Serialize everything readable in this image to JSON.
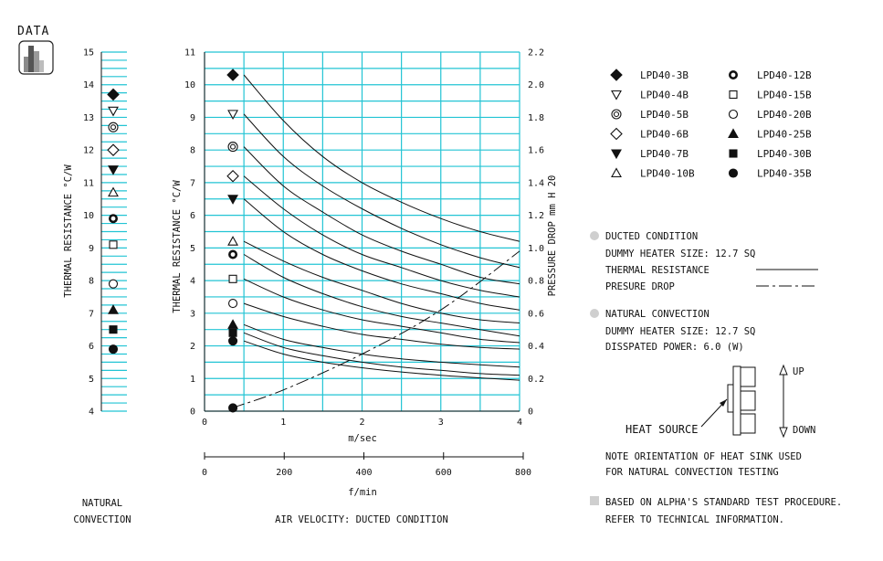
{
  "data_tag": "DATA",
  "chart_data": [
    {
      "type": "scatter",
      "name": "natural-convection",
      "ylabel": "THERMAL RESISTANCE  °C/W",
      "xlabel_lines": [
        "NATURAL",
        "CONVECTION"
      ],
      "ylim": [
        4,
        15
      ],
      "yticks": [
        4,
        5,
        6,
        7,
        8,
        9,
        10,
        11,
        12,
        13,
        14,
        15
      ],
      "grid": true,
      "points": [
        {
          "model": "LPD40-3B",
          "y": 13.7
        },
        {
          "model": "LPD40-4B",
          "y": 13.2
        },
        {
          "model": "LPD40-5B",
          "y": 12.7
        },
        {
          "model": "LPD40-6B",
          "y": 12.0
        },
        {
          "model": "LPD40-7B",
          "y": 11.4
        },
        {
          "model": "LPD40-10B",
          "y": 10.7
        },
        {
          "model": "LPD40-12B",
          "y": 9.9
        },
        {
          "model": "LPD40-15B",
          "y": 9.1
        },
        {
          "model": "LPD40-20B",
          "y": 7.9
        },
        {
          "model": "LPD40-25B",
          "y": 7.1
        },
        {
          "model": "LPD40-30B",
          "y": 6.5
        },
        {
          "model": "LPD40-35B",
          "y": 5.9
        }
      ]
    },
    {
      "type": "line",
      "name": "ducted-condition",
      "ylabel": "THERMAL  RESISTANCE  °C/W",
      "y2label": "PRESSURE  DROP   mm H 20",
      "xlabel": "m/sec",
      "x2label": "f/min",
      "bottom_caption": "AIR VELOCITY:  DUCTED CONDITION",
      "xlim": [
        0,
        4
      ],
      "ylim": [
        0,
        11
      ],
      "y2lim": [
        0,
        2.2
      ],
      "xticks": [
        0,
        1,
        2,
        3,
        4
      ],
      "yticks": [
        0,
        1,
        2,
        3,
        4,
        5,
        6,
        7,
        8,
        9,
        10,
        11
      ],
      "y2ticks": [
        "0",
        "0.2",
        "0.4",
        "0.6",
        "0.8",
        "1.0",
        "1.2",
        "1.4",
        "1.6",
        "1.8",
        "2.0",
        "2.2"
      ],
      "x2ticks": [
        0,
        200,
        400,
        600,
        800
      ],
      "grid": true,
      "x": [
        0.5,
        1.0,
        1.5,
        2.0,
        2.5,
        3.0,
        3.5,
        4.0
      ],
      "series": [
        {
          "model": "LPD40-3B",
          "marker_y": 10.3,
          "values": [
            10.3,
            8.9,
            7.8,
            7.0,
            6.4,
            5.9,
            5.5,
            5.2
          ]
        },
        {
          "model": "LPD40-4B",
          "marker_y": 9.1,
          "values": [
            9.1,
            7.8,
            6.9,
            6.2,
            5.6,
            5.1,
            4.7,
            4.4
          ]
        },
        {
          "model": "LPD40-5B",
          "marker_y": 8.1,
          "values": [
            8.1,
            6.9,
            6.1,
            5.4,
            4.9,
            4.5,
            4.1,
            3.9
          ]
        },
        {
          "model": "LPD40-6B",
          "marker_y": 7.2,
          "values": [
            7.2,
            6.2,
            5.4,
            4.8,
            4.4,
            4.0,
            3.7,
            3.5
          ]
        },
        {
          "model": "LPD40-7B",
          "marker_y": 6.5,
          "values": [
            6.5,
            5.5,
            4.8,
            4.3,
            3.9,
            3.6,
            3.3,
            3.1
          ]
        },
        {
          "model": "LPD40-10B",
          "marker_y": 5.2,
          "values": [
            5.2,
            4.6,
            4.1,
            3.7,
            3.3,
            3.0,
            2.8,
            2.7
          ]
        },
        {
          "model": "LPD40-12B",
          "marker_y": 4.8,
          "values": [
            4.8,
            4.1,
            3.6,
            3.2,
            2.9,
            2.7,
            2.5,
            2.3
          ]
        },
        {
          "model": "LPD40-15B",
          "marker_y": 4.05,
          "values": [
            4.05,
            3.5,
            3.1,
            2.8,
            2.6,
            2.4,
            2.2,
            2.1
          ]
        },
        {
          "model": "LPD40-20B",
          "marker_y": 3.3,
          "values": [
            3.3,
            2.9,
            2.6,
            2.35,
            2.2,
            2.05,
            1.95,
            1.9
          ]
        },
        {
          "model": "LPD40-25B",
          "marker_y": 2.65,
          "values": [
            2.65,
            2.2,
            1.95,
            1.75,
            1.6,
            1.5,
            1.42,
            1.35
          ]
        },
        {
          "model": "LPD40-30B",
          "marker_y": 2.4,
          "values": [
            2.4,
            1.95,
            1.7,
            1.5,
            1.35,
            1.25,
            1.15,
            1.1
          ]
        },
        {
          "model": "LPD40-35B",
          "marker_y": 2.15,
          "values": [
            2.15,
            1.75,
            1.5,
            1.33,
            1.2,
            1.1,
            1.02,
            0.95
          ]
        }
      ],
      "pressure_drop": {
        "x": [
          0.35,
          1.0,
          2.0,
          3.0,
          4.0
        ],
        "values": [
          0.02,
          0.13,
          0.35,
          0.62,
          0.98
        ]
      },
      "pressure_marker_y": 0.2
    }
  ],
  "legend": [
    {
      "model": "LPD40-3B",
      "marker": "diamond-filled"
    },
    {
      "model": "LPD40-4B",
      "marker": "triangle-down-open"
    },
    {
      "model": "LPD40-5B",
      "marker": "double-circle"
    },
    {
      "model": "LPD40-6B",
      "marker": "diamond-open"
    },
    {
      "model": "LPD40-7B",
      "marker": "triangle-down-filled"
    },
    {
      "model": "LPD40-10B",
      "marker": "triangle-up-open"
    },
    {
      "model": "LPD40-12B",
      "marker": "thick-circle"
    },
    {
      "model": "LPD40-15B",
      "marker": "square-open"
    },
    {
      "model": "LPD40-20B",
      "marker": "circle-open"
    },
    {
      "model": "LPD40-25B",
      "marker": "triangle-up-filled"
    },
    {
      "model": "LPD40-30B",
      "marker": "square-filled"
    },
    {
      "model": "LPD40-35B",
      "marker": "circle-filled"
    }
  ],
  "notes": {
    "ducted_title": "DUCTED CONDITION",
    "ducted_heater": "DUMMY HEATER SIZE: 12.7 SQ",
    "thermal_resistance": "THERMAL RESISTANCE",
    "pressure_drop": "PRESURE DROP",
    "natural_title": "NATURAL CONVECTION",
    "natural_heater": "DUMMY HEATER SIZE: 12.7 SQ",
    "dissipated": "DISSPATED POWER: 6.0 (W)",
    "up": "UP",
    "down": "DOWN",
    "heat_source": "HEAT SOURCE",
    "orientation_1": "NOTE ORIENTATION OF HEAT SINK USED",
    "orientation_2": "FOR NATURAL CONVECTION TESTING",
    "procedure_1": "BASED ON ALPHA'S STANDARD TEST PROCEDURE.",
    "procedure_2": "REFER TO TECHNICAL INFORMATION."
  },
  "colors": {
    "grid": "#22c4d4",
    "ink": "#111111",
    "note_bullet": "#cfcfcf"
  }
}
